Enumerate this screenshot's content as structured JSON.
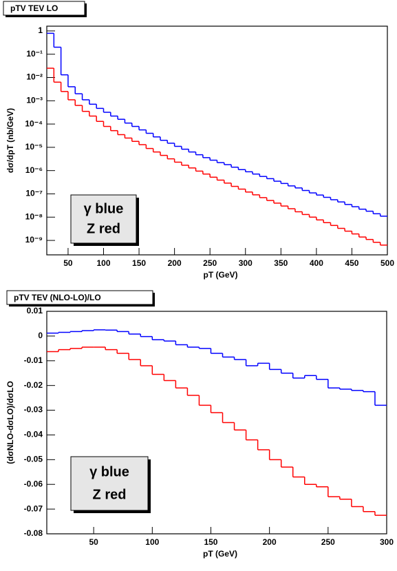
{
  "chart_data": [
    {
      "type": "histogram",
      "title": "pTV TEV LO",
      "xlabel": "pT (GeV)",
      "ylabel": "dσ/dpT (nb/GeV)",
      "bins": [
        20,
        30,
        40,
        50,
        60,
        70,
        80,
        90,
        100,
        110,
        120,
        130,
        140,
        150,
        160,
        170,
        180,
        190,
        200,
        210,
        220,
        230,
        240,
        250,
        260,
        270,
        280,
        290,
        300,
        310,
        320,
        330,
        340,
        350,
        360,
        370,
        380,
        390,
        400,
        410,
        420,
        430,
        440,
        450,
        460,
        470,
        480,
        490,
        500
      ],
      "series": [
        {
          "name": "γ blue",
          "color": "#0000ff",
          "values": [
            0.79,
            0.2,
            0.013,
            0.004,
            0.002,
            0.0011,
            0.00071,
            0.00047,
            0.00032,
            0.00022,
            0.00016,
            0.00011,
            7.9e-05,
            5.6e-05,
            4e-05,
            2.8e-05,
            2e-05,
            1.5e-05,
            1.1e-05,
            8.3e-06,
            6.3e-06,
            4.8e-06,
            3.6e-06,
            2.8e-06,
            2.2e-06,
            1.8e-06,
            1.4e-06,
            1.1e-06,
            8.9e-07,
            7.1e-07,
            5.6e-07,
            4.5e-07,
            3.5e-07,
            2.8e-07,
            2.2e-07,
            1.8e-07,
            1.4e-07,
            1.1e-07,
            8.9e-08,
            7.1e-08,
            5.6e-08,
            4.5e-08,
            3.5e-08,
            2.8e-08,
            2.2e-08,
            1.8e-08,
            1.4e-08,
            1.1e-08
          ]
        },
        {
          "name": "Z red",
          "color": "#ff0000",
          "values": [
            0.025,
            0.0063,
            0.0025,
            0.0011,
            0.00063,
            0.00035,
            0.00022,
            0.00013,
            7.9e-05,
            5.2e-05,
            3.5e-05,
            2.5e-05,
            1.8e-05,
            1.3e-05,
            8.9e-06,
            6.3e-06,
            4.5e-06,
            3.2e-06,
            2.3e-06,
            1.7e-06,
            1.3e-06,
            9.5e-07,
            7.1e-07,
            5.2e-07,
            3.9e-07,
            2.9e-07,
            2.1e-07,
            1.6e-07,
            1.2e-07,
            9.1e-08,
            6.9e-08,
            5.2e-08,
            4e-08,
            3e-08,
            2.3e-08,
            1.7e-08,
            1.3e-08,
            1e-08,
            7.6e-09,
            5.8e-09,
            4.4e-09,
            3.3e-09,
            2.5e-09,
            1.9e-09,
            1.4e-09,
            1.1e-09,
            8.3e-10,
            6.3e-10
          ]
        }
      ],
      "xlim": [
        20,
        500
      ],
      "xticks": [
        50,
        100,
        150,
        200,
        250,
        300,
        350,
        400,
        450,
        500
      ],
      "ylim": [
        2.4e-10,
        1.6
      ],
      "ylog": true,
      "yticks": [
        1,
        {
          "value": 0.1,
          "label": "10⁻¹"
        },
        {
          "value": 0.01,
          "label": "10⁻²"
        },
        {
          "value": 0.001,
          "label": "10⁻³"
        },
        {
          "value": 0.0001,
          "label": "10⁻⁴"
        },
        {
          "value": 1e-05,
          "label": "10⁻⁵"
        },
        {
          "value": 1e-06,
          "label": "10⁻⁶"
        },
        {
          "value": 1e-07,
          "label": "10⁻⁷"
        },
        {
          "value": 1e-08,
          "label": "10⁻⁸"
        },
        {
          "value": 1e-09,
          "label": "10⁻⁹"
        }
      ],
      "grid": false,
      "legend": "lower left"
    },
    {
      "type": "histogram",
      "title": "pTV TEV (NLO-LO)/LO",
      "xlabel": "pT (GeV)",
      "ylabel": "(dσNLO-dσLO)/dσLO",
      "bins": [
        10,
        20,
        30,
        40,
        50,
        60,
        70,
        80,
        90,
        100,
        110,
        120,
        130,
        140,
        150,
        160,
        170,
        180,
        190,
        200,
        210,
        220,
        230,
        240,
        250,
        260,
        270,
        280,
        290,
        300
      ],
      "series": [
        {
          "name": "γ blue",
          "color": "#0000ff",
          "values": [
            0.0012,
            0.0015,
            0.0018,
            0.0022,
            0.0025,
            0.0024,
            0.0018,
            0.0008,
            -0.0002,
            -0.0015,
            -0.002,
            -0.0035,
            -0.0045,
            -0.005,
            -0.007,
            -0.0085,
            -0.0095,
            -0.012,
            -0.011,
            -0.0135,
            -0.015,
            -0.017,
            -0.016,
            -0.0175,
            -0.021,
            -0.0215,
            -0.022,
            -0.0225,
            -0.028
          ]
        },
        {
          "name": "Z red",
          "color": "#ff0000",
          "values": [
            -0.0063,
            -0.0055,
            -0.005,
            -0.0045,
            -0.0045,
            -0.0055,
            -0.007,
            -0.0095,
            -0.012,
            -0.0155,
            -0.018,
            -0.021,
            -0.024,
            -0.028,
            -0.031,
            -0.035,
            -0.038,
            -0.042,
            -0.046,
            -0.05,
            -0.053,
            -0.057,
            -0.06,
            -0.061,
            -0.065,
            -0.066,
            -0.069,
            -0.071,
            -0.0725
          ]
        }
      ],
      "xlim": [
        10,
        300
      ],
      "xticks": [
        50,
        100,
        150,
        200,
        250,
        300
      ],
      "ylim": [
        -0.08,
        0.01
      ],
      "yticks": [
        0.01,
        0,
        -0.01,
        -0.02,
        -0.03,
        -0.04,
        -0.05,
        -0.06,
        -0.07,
        -0.08
      ],
      "grid": false,
      "legend": "lower left"
    }
  ]
}
